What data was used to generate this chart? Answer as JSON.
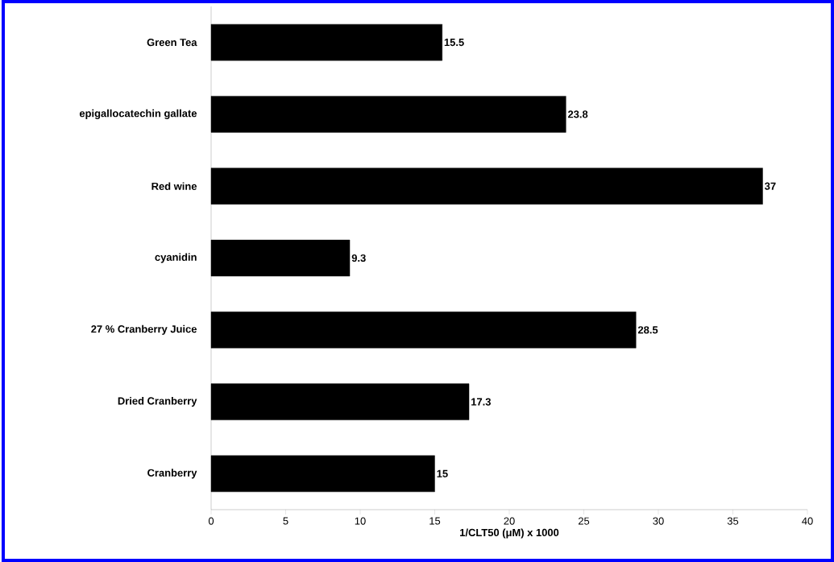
{
  "chart_data": {
    "type": "bar",
    "orientation": "horizontal",
    "categories": [
      "Green Tea",
      "epigallocatechin gallate",
      "Red wine",
      "cyanidin",
      "27 % Cranberry Juice",
      "Dried Cranberry",
      "Cranberry"
    ],
    "values": [
      15.5,
      23.8,
      37,
      9.3,
      28.5,
      17.3,
      15
    ],
    "color": "#000000",
    "data_labels": true,
    "xlabel": "1/CLT50 (μM) x 1000",
    "xlim": [
      0,
      40
    ],
    "xticks": [
      0,
      5,
      10,
      15,
      20,
      25,
      30,
      35,
      40
    ],
    "grid": false
  }
}
